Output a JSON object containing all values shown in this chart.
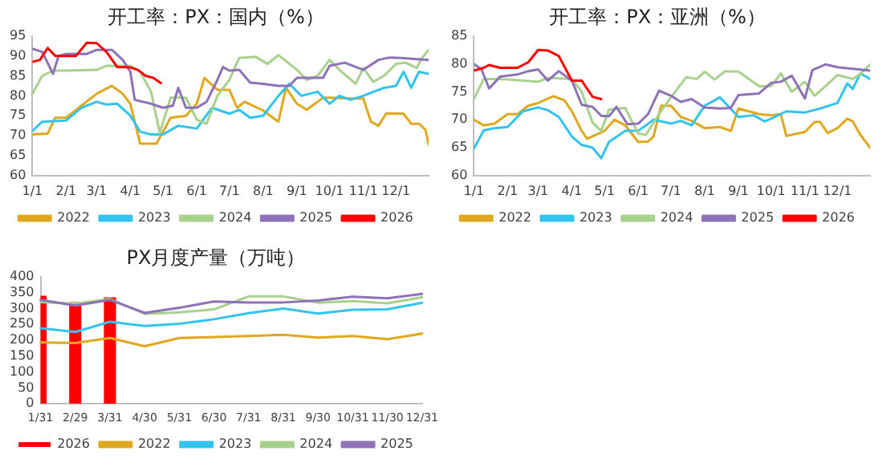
{
  "chart_data": [
    {
      "type": "line",
      "title": "开工率：PX：国内（%）",
      "xlim": [
        "--01-01",
        "--12-31"
      ],
      "xticks": [
        {
          "value": "--01-01",
          "label": "1/1"
        },
        {
          "value": "--02-01",
          "label": "2/1"
        },
        {
          "value": "--03-01",
          "label": "3/1"
        },
        {
          "value": "--04-01",
          "label": "4/1"
        },
        {
          "value": "--05-01",
          "label": "5/1"
        },
        {
          "value": "--06-01",
          "label": "6/1"
        },
        {
          "value": "--07-01",
          "label": "7/1"
        },
        {
          "value": "--08-01",
          "label": "8/1"
        },
        {
          "value": "--09-01",
          "label": "9/1"
        },
        {
          "value": "--10-01",
          "label": "10/1"
        },
        {
          "value": "--11-01",
          "label": "11/1"
        },
        {
          "value": "--12-01",
          "label": "12/1"
        }
      ],
      "ylim": [
        60,
        95
      ],
      "yticks": [
        60,
        65,
        70,
        75,
        80,
        85,
        90,
        95
      ],
      "grid": false,
      "legend": "bottom",
      "marker": "none",
      "line_style": "solid",
      "series": [
        {
          "name": "2022",
          "color": "#e0a81e",
          "x": [
            "--01-01",
            "--01-15",
            "--01-22",
            "--02-01",
            "--02-15",
            "--03-01",
            "--03-15",
            "--03-25",
            "--04-01",
            "--04-10",
            "--04-25",
            "--05-01",
            "--05-08",
            "--05-22",
            "--06-01",
            "--06-08",
            "--06-20",
            "--07-01",
            "--07-08",
            "--07-15",
            "--08-01",
            "--08-15",
            "--08-22",
            "--09-01",
            "--09-10",
            "--09-25",
            "--10-01",
            "--10-20",
            "--11-01",
            "--11-08",
            "--11-15",
            "--11-22",
            "--12-08",
            "--12-15",
            "--12-22",
            "--12-28",
            "--12-31"
          ],
          "values": [
            70.3,
            70.5,
            74.5,
            74.5,
            77.5,
            80.5,
            82.5,
            80.5,
            78,
            68,
            68,
            71,
            74.5,
            75,
            78,
            84.5,
            81.5,
            81.5,
            77,
            78.5,
            76.3,
            73.5,
            82,
            78,
            76.5,
            79.5,
            79.5,
            79.3,
            79.3,
            73.5,
            72.5,
            75.6,
            75.5,
            73,
            73,
            71.5,
            67.8
          ]
        },
        {
          "name": "2023",
          "color": "#33c3f0",
          "x": [
            "--01-01",
            "--01-10",
            "--02-01",
            "--02-15",
            "--03-01",
            "--03-10",
            "--03-20",
            "--04-01",
            "--04-10",
            "--04-20",
            "--05-01",
            "--05-15",
            "--06-01",
            "--06-15",
            "--07-01",
            "--07-10",
            "--07-20",
            "--08-01",
            "--08-15",
            "--08-25",
            "--09-05",
            "--09-20",
            "--10-01",
            "--10-10",
            "--10-20",
            "--11-01",
            "--11-20",
            "--12-01",
            "--12-08",
            "--12-15",
            "--12-22",
            "--12-31"
          ],
          "values": [
            71.2,
            73.5,
            73.8,
            77,
            78.5,
            77.8,
            78,
            75,
            71,
            70.3,
            70.3,
            72.5,
            71.8,
            77,
            75.5,
            76.5,
            74.5,
            75,
            80,
            83,
            80,
            81,
            78,
            80,
            79,
            80,
            82,
            82.5,
            86,
            82,
            86,
            85.5
          ]
        },
        {
          "name": "2024",
          "color": "#a9d18e",
          "x": [
            "--01-01",
            "--01-10",
            "--01-20",
            "--02-01",
            "--03-01",
            "--03-10",
            "--04-01",
            "--04-10",
            "--04-20",
            "--04-28",
            "--05-08",
            "--05-22",
            "--06-01",
            "--06-10",
            "--06-20",
            "--07-01",
            "--07-10",
            "--07-25",
            "--08-05",
            "--08-15",
            "--09-01",
            "--09-10",
            "--09-20",
            "--10-01",
            "--10-10",
            "--10-25",
            "--11-01",
            "--11-10",
            "--11-20",
            "--12-01",
            "--12-10",
            "--12-20",
            "--12-25",
            "--12-31"
          ],
          "values": [
            80.5,
            85,
            86.3,
            86.3,
            86.5,
            87.5,
            87.5,
            86,
            81,
            70.7,
            79.5,
            79.5,
            74,
            73,
            80,
            84,
            89.5,
            89.8,
            88,
            90.2,
            86.5,
            84,
            85,
            89,
            86.5,
            83,
            87,
            83.5,
            85,
            88,
            88.3,
            87,
            89.5,
            91.5
          ]
        },
        {
          "name": "2025",
          "color": "#8e72b8",
          "x": [
            "--01-01",
            "--01-10",
            "--01-20",
            "--01-25",
            "--02-01",
            "--02-20",
            "--03-01",
            "--03-15",
            "--03-25",
            "--04-01",
            "--04-05",
            "--04-20",
            "--05-01",
            "--05-10",
            "--05-15",
            "--05-22",
            "--06-01",
            "--06-10",
            "--06-20",
            "--06-25",
            "--07-01",
            "--07-10",
            "--07-20",
            "--08-01",
            "--08-15",
            "--08-25",
            "--09-01",
            "--09-15",
            "--09-25",
            "--10-01",
            "--10-15",
            "--11-01",
            "--11-15",
            "--11-25",
            "--12-05",
            "--12-15",
            "--12-31"
          ],
          "values": [
            91.8,
            91,
            85.5,
            90,
            90.5,
            90.5,
            91.5,
            91.5,
            89,
            86,
            79,
            78,
            77,
            77.5,
            82,
            77,
            77,
            78.5,
            84,
            87.2,
            86.3,
            86.5,
            83.3,
            83,
            82.5,
            82.5,
            84.5,
            84.5,
            84.5,
            87.5,
            88.3,
            86.5,
            89,
            89.6,
            89.5,
            89.3,
            89
          ]
        },
        {
          "name": "2026",
          "color": "#ff0000",
          "x": [
            "--01-01",
            "--01-08",
            "--01-15",
            "--01-22",
            "--02-01",
            "--02-10",
            "--02-20",
            "--03-01",
            "--03-10",
            "--03-20",
            "--04-01",
            "--04-08",
            "--04-15",
            "--04-22",
            "--04-29"
          ],
          "values": [
            88.5,
            89,
            92,
            90,
            90,
            90,
            93.3,
            93.2,
            91,
            87.2,
            87.1,
            86.5,
            85,
            84.5,
            83.2
          ]
        }
      ]
    },
    {
      "type": "line",
      "title": "开工率：PX：亚洲（%）",
      "xlim": [
        "--01-01",
        "--12-31"
      ],
      "xticks": [
        {
          "value": "--01-01",
          "label": "1/1"
        },
        {
          "value": "--02-01",
          "label": "2/1"
        },
        {
          "value": "--03-01",
          "label": "3/1"
        },
        {
          "value": "--04-01",
          "label": "4/1"
        },
        {
          "value": "--05-01",
          "label": "5/1"
        },
        {
          "value": "--06-01",
          "label": "6/1"
        },
        {
          "value": "--07-01",
          "label": "7/1"
        },
        {
          "value": "--08-01",
          "label": "8/1"
        },
        {
          "value": "--09-01",
          "label": "9/1"
        },
        {
          "value": "--10-01",
          "label": "10/1"
        },
        {
          "value": "--11-01",
          "label": "11/1"
        },
        {
          "value": "--12-01",
          "label": "12/1"
        }
      ],
      "ylim": [
        60,
        85
      ],
      "yticks": [
        60,
        65,
        70,
        75,
        80,
        85
      ],
      "grid": false,
      "legend": "bottom",
      "marker": "none",
      "line_style": "solid",
      "series": [
        {
          "name": "2022",
          "color": "#e0a81e",
          "x": [
            "--01-01",
            "--01-10",
            "--01-20",
            "--02-01",
            "--02-10",
            "--02-20",
            "--03-01",
            "--03-15",
            "--03-25",
            "--04-01",
            "--04-10",
            "--04-15",
            "--05-01",
            "--05-10",
            "--05-20",
            "--06-01",
            "--06-10",
            "--06-15",
            "--06-22",
            "--07-01",
            "--07-10",
            "--07-20",
            "--08-01",
            "--08-15",
            "--08-25",
            "--09-01",
            "--09-20",
            "--10-01",
            "--10-10",
            "--10-15",
            "--11-01",
            "--11-10",
            "--11-15",
            "--11-22",
            "--12-01",
            "--12-10",
            "--12-15",
            "--12-22",
            "--12-31"
          ],
          "values": [
            70,
            69,
            69.3,
            71,
            71,
            72.5,
            73,
            74.2,
            73.5,
            71.5,
            68,
            66.6,
            68,
            70,
            69,
            66,
            66.1,
            67,
            72.5,
            72.5,
            70.5,
            69.8,
            68.5,
            68.7,
            68,
            72,
            71,
            70.8,
            71,
            67.1,
            67.8,
            69.6,
            69.6,
            67.6,
            68.5,
            70.2,
            69.7,
            67.3,
            65
          ]
        },
        {
          "name": "2023",
          "color": "#33c3f0",
          "x": [
            "--01-01",
            "--01-10",
            "--01-20",
            "--02-01",
            "--02-15",
            "--03-01",
            "--03-10",
            "--03-20",
            "--04-01",
            "--04-10",
            "--04-20",
            "--04-28",
            "--05-05",
            "--05-20",
            "--06-01",
            "--06-15",
            "--07-01",
            "--07-10",
            "--07-20",
            "--08-01",
            "--08-15",
            "--09-01",
            "--09-15",
            "--09-25",
            "--10-01",
            "--10-15",
            "--11-01",
            "--11-15",
            "--12-01",
            "--12-10",
            "--12-15",
            "--12-22",
            "--12-31"
          ],
          "values": [
            64.8,
            68.1,
            68.5,
            68.7,
            71.5,
            72.2,
            71.7,
            70.5,
            67,
            65.5,
            65,
            63.1,
            66,
            68,
            68,
            70,
            69.3,
            69.8,
            69,
            72.5,
            74,
            70.5,
            70.8,
            69.7,
            70.2,
            71.5,
            71.3,
            72,
            73,
            76.5,
            75.5,
            78.3,
            77.3
          ]
        },
        {
          "name": "2024",
          "color": "#a9d18e",
          "x": [
            "--01-01",
            "--01-10",
            "--01-20",
            "--02-01",
            "--03-01",
            "--03-10",
            "--04-01",
            "--04-10",
            "--04-20",
            "--04-28",
            "--05-05",
            "--05-20",
            "--06-01",
            "--06-08",
            "--06-20",
            "--07-01",
            "--07-15",
            "--07-25",
            "--08-01",
            "--08-10",
            "--08-20",
            "--09-01",
            "--09-20",
            "--10-01",
            "--10-10",
            "--10-20",
            "--11-01",
            "--11-10",
            "--11-20",
            "--12-01",
            "--12-15",
            "--12-22",
            "--12-31"
          ],
          "values": [
            73.7,
            77.3,
            77.3,
            77.2,
            76.8,
            77.5,
            77.3,
            75,
            69.5,
            68,
            71.8,
            72.1,
            67.5,
            67.3,
            71,
            74,
            77.6,
            77.3,
            78.6,
            77.2,
            78.7,
            78.6,
            76,
            76,
            78.3,
            75,
            76.8,
            74.3,
            76,
            78,
            77.3,
            78.2,
            79.9
          ]
        },
        {
          "name": "2025",
          "color": "#8e72b8",
          "x": [
            "--01-01",
            "--01-08",
            "--01-15",
            "--01-25",
            "--02-10",
            "--02-20",
            "--03-01",
            "--03-10",
            "--03-20",
            "--04-01",
            "--04-10",
            "--04-20",
            "--04-28",
            "--05-05",
            "--05-12",
            "--05-22",
            "--06-01",
            "--06-10",
            "--06-20",
            "--07-01",
            "--07-10",
            "--07-20",
            "--08-01",
            "--08-15",
            "--08-25",
            "--09-01",
            "--09-20",
            "--10-01",
            "--10-10",
            "--10-20",
            "--11-01",
            "--11-08",
            "--11-20",
            "--12-01",
            "--12-15",
            "--12-31"
          ],
          "values": [
            80,
            79,
            75.6,
            77.7,
            78.1,
            78.7,
            79,
            77,
            78.7,
            77,
            72.7,
            72.3,
            70.7,
            70.6,
            72.3,
            69.2,
            69.3,
            71,
            75.2,
            74.3,
            73.2,
            73.7,
            72.2,
            72,
            72.1,
            74.4,
            74.7,
            76.6,
            76.8,
            77.9,
            73.8,
            78.9,
            79.9,
            79.4,
            79.1,
            78.8
          ]
        },
        {
          "name": "2026",
          "color": "#ff0000",
          "x": [
            "--01-01",
            "--01-10",
            "--01-15",
            "--01-25",
            "--02-10",
            "--02-20",
            "--03-01",
            "--03-10",
            "--03-20",
            "--04-01",
            "--04-10",
            "--04-20",
            "--04-28"
          ],
          "values": [
            78.8,
            79.3,
            79.8,
            79.3,
            79.3,
            80.3,
            82.5,
            82.4,
            81.4,
            77,
            77,
            74.1,
            73.7
          ]
        }
      ]
    },
    {
      "type": "bar",
      "title": "PX月度产量（万吨）",
      "categories": [
        "1/31",
        "2/29",
        "3/31",
        "4/30",
        "5/31",
        "6/30",
        "7/31",
        "8/31",
        "9/30",
        "10/31",
        "11/30",
        "12/31"
      ],
      "ylim": [
        0,
        400
      ],
      "yticks": [
        0,
        50,
        100,
        150,
        200,
        250,
        300,
        350,
        400
      ],
      "grid": false,
      "legend": "bottom",
      "marker": "none",
      "line_style": "solid",
      "series": [
        {
          "name": "2026",
          "type": "bar",
          "color": "#ff0000",
          "values": [
            340,
            320,
            335,
            null,
            null,
            null,
            null,
            null,
            null,
            null,
            null,
            null
          ]
        },
        {
          "name": "2022",
          "type": "line",
          "color": "#e0a81e",
          "values": [
            193,
            191,
            207,
            181,
            207,
            210,
            213,
            217,
            208,
            213,
            203,
            221
          ]
        },
        {
          "name": "2023",
          "type": "line",
          "color": "#33c3f0",
          "values": [
            238,
            226,
            258,
            245,
            252,
            266,
            285,
            300,
            284,
            296,
            297,
            318
          ]
        },
        {
          "name": "2024",
          "type": "line",
          "color": "#a9d18e",
          "values": [
            320,
            315,
            330,
            283,
            288,
            297,
            338,
            338,
            318,
            323,
            316,
            335
          ]
        },
        {
          "name": "2025",
          "type": "line",
          "color": "#8e72b8",
          "values": [
            327,
            309,
            327,
            286,
            302,
            322,
            319,
            319,
            325,
            337,
            332,
            346
          ]
        }
      ]
    }
  ]
}
